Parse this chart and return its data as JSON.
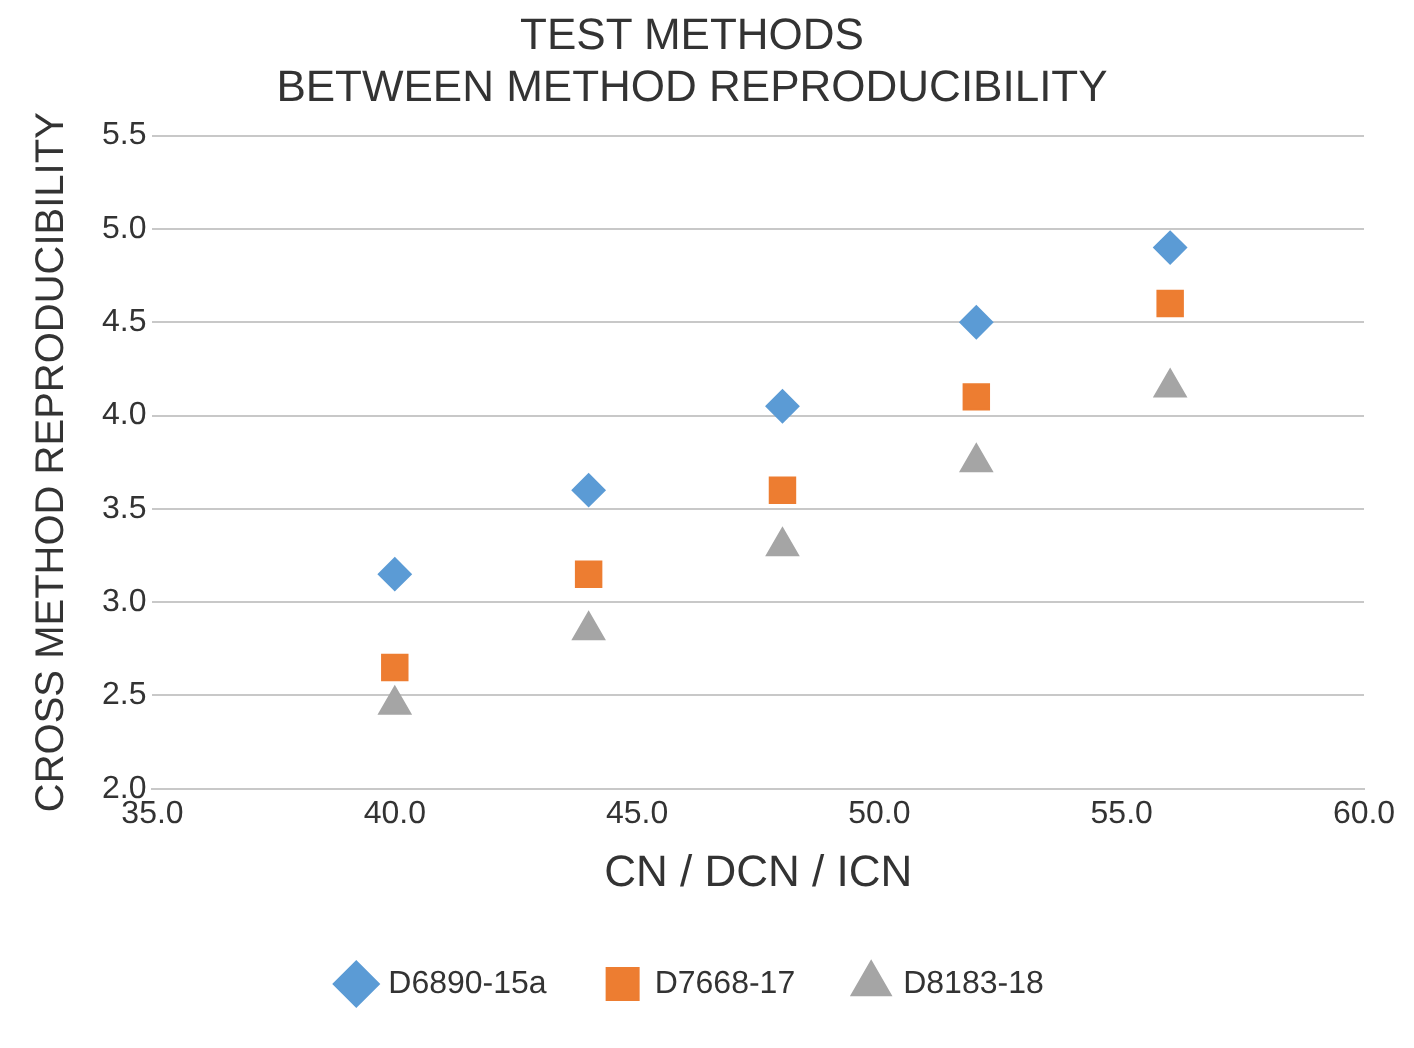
{
  "chart_data": {
    "type": "scatter",
    "title": [
      "TEST METHODS",
      "BETWEEN METHOD REPRODUCIBILITY"
    ],
    "xlabel": "CN / DCN / ICN",
    "ylabel": "CROSS METHOD REPRODUCIBILITY",
    "x": [
      40,
      44,
      48,
      52,
      56
    ],
    "series": [
      {
        "name": "D6890-15a",
        "color": "#5b9bd5",
        "marker": "diamond",
        "values": [
          3.15,
          3.6,
          4.05,
          4.5,
          4.9
        ]
      },
      {
        "name": "D7668-17",
        "color": "#ed7d31",
        "marker": "square",
        "values": [
          2.65,
          3.15,
          3.6,
          4.1,
          4.6
        ]
      },
      {
        "name": "D8183-18",
        "color": "#a5a5a5",
        "marker": "triangle",
        "values": [
          2.45,
          2.85,
          3.3,
          3.75,
          4.15
        ]
      }
    ],
    "xlim": [
      35,
      60
    ],
    "xticks": [
      {
        "value": 35,
        "label": "35.0"
      },
      {
        "value": 40,
        "label": "40.0"
      },
      {
        "value": 45,
        "label": "45.0"
      },
      {
        "value": 50,
        "label": "50.0"
      },
      {
        "value": 55,
        "label": "55.0"
      },
      {
        "value": 60,
        "label": "60.0"
      }
    ],
    "ylim": [
      2,
      5.5
    ],
    "yticks": [
      {
        "value": 2,
        "label": "2.0"
      },
      {
        "value": 2.5,
        "label": "2.5"
      },
      {
        "value": 3,
        "label": "3.0"
      },
      {
        "value": 3.5,
        "label": "3.5"
      },
      {
        "value": 4,
        "label": "4.0"
      },
      {
        "value": 4.5,
        "label": "4.5"
      },
      {
        "value": 5,
        "label": "5.0"
      },
      {
        "value": 5.5,
        "label": "5.5"
      }
    ],
    "grid": "y",
    "legend": "bottom"
  }
}
